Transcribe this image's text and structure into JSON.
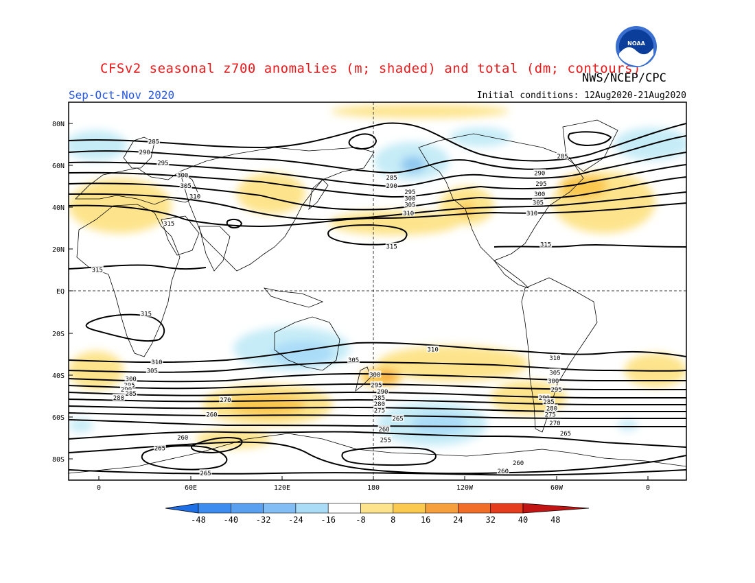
{
  "header": {
    "title": "CFSv2 seasonal z700 anomalies (m; shaded) and total (dm; contours)",
    "org": "NWS/NCEP/CPC",
    "season": "Sep-Oct-Nov 2020",
    "initial_conditions": "Initial conditions: 12Aug2020-21Aug2020",
    "logo_text": "NOAA"
  },
  "axes": {
    "lat_labels": [
      "80N",
      "60N",
      "40N",
      "20N",
      "EQ",
      "20S",
      "40S",
      "60S",
      "80S"
    ],
    "lon_labels": [
      "0",
      "60E",
      "120E",
      "180",
      "120W",
      "60W",
      "0"
    ]
  },
  "contour_labels": [
    {
      "text": "285",
      "lon": 36,
      "lat": 71
    },
    {
      "text": "290",
      "lon": 30,
      "lat": 66
    },
    {
      "text": "295",
      "lon": 42,
      "lat": 61
    },
    {
      "text": "300",
      "lon": 55,
      "lat": 55
    },
    {
      "text": "305",
      "lon": 57,
      "lat": 50
    },
    {
      "text": "310",
      "lon": 63,
      "lat": 45
    },
    {
      "text": "315",
      "lon": 46,
      "lat": 32
    },
    {
      "text": "315",
      "lon": -1,
      "lat": 10
    },
    {
      "text": "315",
      "lon": 31,
      "lat": -11
    },
    {
      "text": "285",
      "lon": -168,
      "lat": 54
    },
    {
      "text": "290",
      "lon": -168,
      "lat": 50
    },
    {
      "text": "295",
      "lon": -156,
      "lat": 47
    },
    {
      "text": "300",
      "lon": -156,
      "lat": 44
    },
    {
      "text": "305",
      "lon": -156,
      "lat": 41
    },
    {
      "text": "310",
      "lon": -157,
      "lat": 37
    },
    {
      "text": "315",
      "lon": -168,
      "lat": 21
    },
    {
      "text": "290",
      "lon": -71,
      "lat": 56
    },
    {
      "text": "295",
      "lon": -70,
      "lat": 51
    },
    {
      "text": "300",
      "lon": -71,
      "lat": 46
    },
    {
      "text": "305",
      "lon": -72,
      "lat": 42
    },
    {
      "text": "310",
      "lon": -76,
      "lat": 37
    },
    {
      "text": "285",
      "lon": -56,
      "lat": 64
    },
    {
      "text": "315",
      "lon": -67,
      "lat": 22
    },
    {
      "text": "310",
      "lon": -141,
      "lat": -28
    },
    {
      "text": "310",
      "lon": -61,
      "lat": -32
    },
    {
      "text": "310",
      "lon": 38,
      "lat": -34
    },
    {
      "text": "305",
      "lon": 35,
      "lat": -38
    },
    {
      "text": "300",
      "lon": 21,
      "lat": -42
    },
    {
      "text": "295",
      "lon": 20,
      "lat": -45
    },
    {
      "text": "290",
      "lon": 18,
      "lat": -47
    },
    {
      "text": "285",
      "lon": 21,
      "lat": -49
    },
    {
      "text": "280",
      "lon": 13,
      "lat": -51
    },
    {
      "text": "305",
      "lon": 167,
      "lat": -33
    },
    {
      "text": "300",
      "lon": -179,
      "lat": -40
    },
    {
      "text": "295",
      "lon": -178,
      "lat": -45
    },
    {
      "text": "290",
      "lon": -174,
      "lat": -48
    },
    {
      "text": "285",
      "lon": -176,
      "lat": -51
    },
    {
      "text": "280",
      "lon": -176,
      "lat": -54
    },
    {
      "text": "275",
      "lon": -176,
      "lat": -57
    },
    {
      "text": "270",
      "lon": 83,
      "lat": -52
    },
    {
      "text": "265",
      "lon": -164,
      "lat": -61
    },
    {
      "text": "260",
      "lon": -173,
      "lat": -66
    },
    {
      "text": "260",
      "lon": 74,
      "lat": -59
    },
    {
      "text": "255",
      "lon": -172,
      "lat": -71
    },
    {
      "text": "260",
      "lon": 55,
      "lat": -70
    },
    {
      "text": "265",
      "lon": 40,
      "lat": -75
    },
    {
      "text": "265",
      "lon": 70,
      "lat": -87
    },
    {
      "text": "260",
      "lon": -95,
      "lat": -86
    },
    {
      "text": "260",
      "lon": -85,
      "lat": -82
    },
    {
      "text": "305",
      "lon": -61,
      "lat": -39
    },
    {
      "text": "300",
      "lon": -62,
      "lat": -43
    },
    {
      "text": "295",
      "lon": -60,
      "lat": -47
    },
    {
      "text": "290",
      "lon": -68,
      "lat": -51
    },
    {
      "text": "285",
      "lon": -65,
      "lat": -53
    },
    {
      "text": "280",
      "lon": -63,
      "lat": -56
    },
    {
      "text": "275",
      "lon": -64,
      "lat": -59
    },
    {
      "text": "270",
      "lon": -61,
      "lat": -63
    },
    {
      "text": "265",
      "lon": -54,
      "lat": -68
    }
  ],
  "colorbar": {
    "labels": [
      "-48",
      "-40",
      "-32",
      "-24",
      "-16",
      "-8",
      "8",
      "16",
      "24",
      "32",
      "40",
      "48"
    ],
    "colors": [
      "#1e6ee6",
      "#3c8cf0",
      "#5aa0f0",
      "#82bef5",
      "#aadcf8",
      "#ffffff",
      "#fde48c",
      "#fbc850",
      "#f5a03c",
      "#f06e28",
      "#e63c1e",
      "#c31414"
    ]
  },
  "colors": {
    "positive_light": "#fde48c",
    "positive_mid": "#fbc850",
    "positive_strong": "#f5a03c",
    "negative_light": "#c6ecf7",
    "negative_mid": "#8fc8f0",
    "negative_strong": "#5aa0f0",
    "contour": "#000000"
  }
}
